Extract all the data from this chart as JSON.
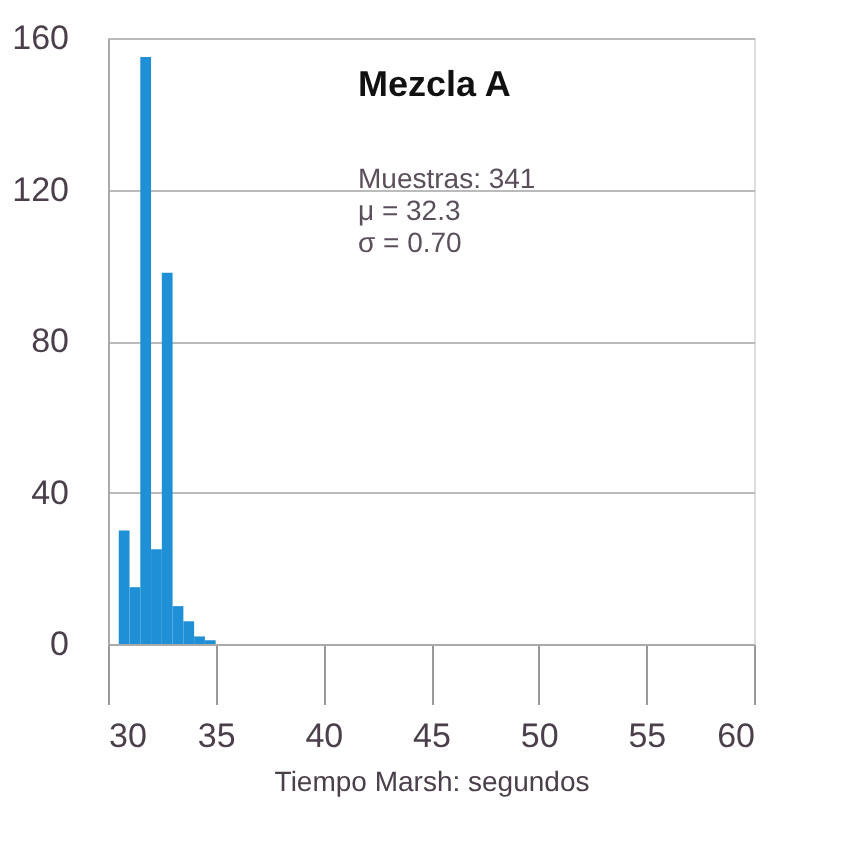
{
  "chart_data": {
    "type": "histogram",
    "title": "Mezcla A",
    "xlabel": "Tiempo Marsh: segundos",
    "annotations": [
      "Muestras: 341",
      "μ = 32.3",
      "σ = 0.70"
    ],
    "bins": [
      30.5,
      31,
      31.5,
      32,
      32.5,
      33,
      33.5,
      34,
      34.5,
      35
    ],
    "values": [
      30,
      15,
      155,
      25,
      98,
      10,
      6,
      2,
      1
    ],
    "color": "#1f8fd6",
    "xlim": [
      30,
      60
    ],
    "xticks": [
      30,
      35,
      40,
      45,
      50,
      55,
      60
    ],
    "ylim": [
      0,
      160
    ],
    "yticks": [
      0,
      40,
      80,
      120,
      160
    ],
    "grid": "y"
  }
}
